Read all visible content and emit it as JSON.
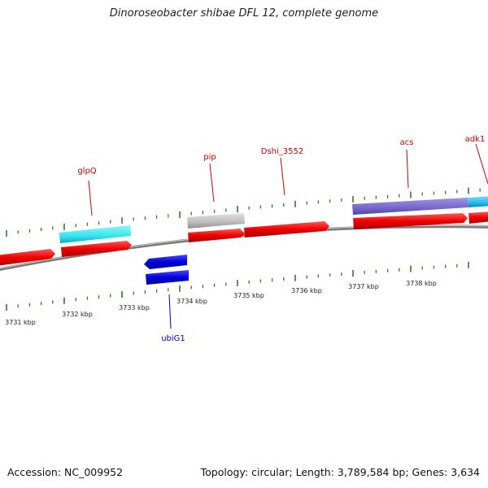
{
  "title": "Dinoroseobacter shibae DFL 12, complete genome",
  "footer": {
    "accession": "Accession: NC_009952",
    "summary": "Topology: circular; Length: 3,789,584 bp; Genes: 3,634"
  },
  "colors": {
    "forward_cds": "#ee0000",
    "reverse_cds": "#0000dd",
    "tick": "#2f7f1f",
    "backbone": "#777777",
    "label_red": "#cc0000",
    "label_blue": "#0000cc",
    "cyan": "#33e6ee",
    "gray": "#bbbbbb",
    "purple": "#7766cc",
    "light_blue": "#22bbee"
  },
  "scale_labels": [
    "3731 kbp",
    "3732 kbp",
    "3733 kbp",
    "3734 kbp",
    "3735 kbp",
    "3736 kbp",
    "3737 kbp",
    "3738 kbp"
  ],
  "gene_labels": [
    {
      "text": "glpQ",
      "color": "red"
    },
    {
      "text": "pip",
      "color": "red"
    },
    {
      "text": "Dshi_3552",
      "color": "red"
    },
    {
      "text": "acs",
      "color": "red"
    },
    {
      "text": "adk1",
      "color": "red"
    },
    {
      "text": "ubiG1",
      "color": "blue"
    }
  ]
}
